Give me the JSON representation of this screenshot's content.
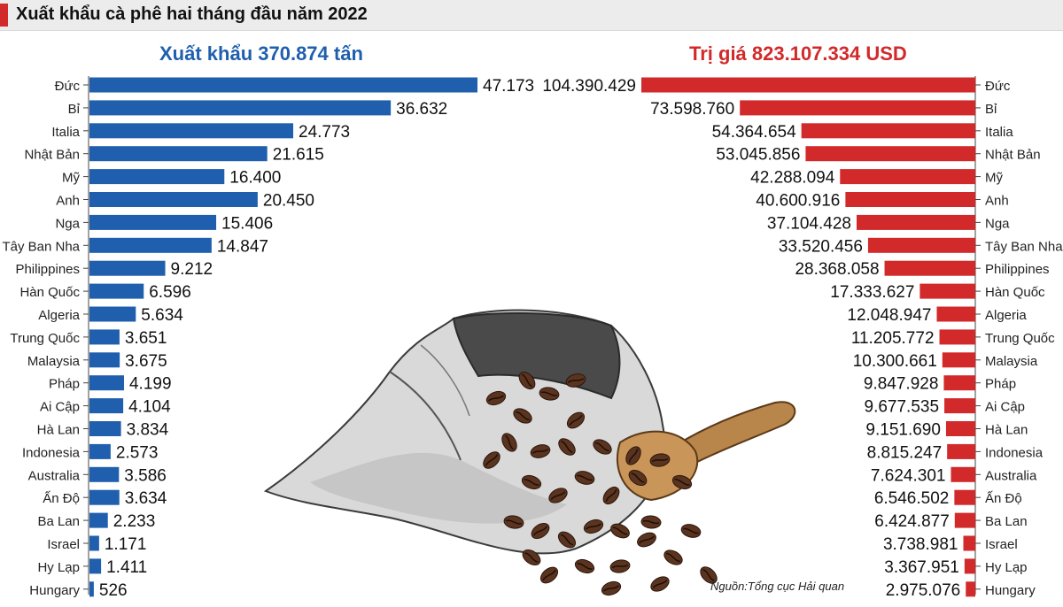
{
  "header": {
    "title": "Xuất khẩu cà phê hai tháng đầu năm 2022"
  },
  "colors": {
    "volume": "#1f5fad",
    "value": "#d22a2a",
    "accent": "#d22a2a"
  },
  "source": "Nguồn:Tổng cục Hải quan",
  "decoration": {
    "icon": "coffee-sack-illustration"
  },
  "chart_data": [
    {
      "type": "bar",
      "orientation": "horizontal",
      "title": "Xuất khẩu 370.874 tấn",
      "unit": "tấn",
      "categories": [
        "Đức",
        "Bỉ",
        "Italia",
        "Nhật Bản",
        "Mỹ",
        "Anh",
        "Nga",
        "Tây Ban Nha",
        "Philippines",
        "Hàn Quốc",
        "Algeria",
        "Trung Quốc",
        "Malaysia",
        "Pháp",
        "Ai Cập",
        "Hà Lan",
        "Indonesia",
        "Australia",
        "Ấn Độ",
        "Ba Lan",
        "Israel",
        "Hy Lạp",
        "Hungary"
      ],
      "values": [
        47173,
        36632,
        24773,
        21615,
        16400,
        20450,
        15406,
        14847,
        9212,
        6596,
        5634,
        3651,
        3675,
        4199,
        4104,
        3834,
        2573,
        3586,
        3634,
        2233,
        1171,
        1411,
        526
      ],
      "labels": [
        "47.173",
        "36.632",
        "24.773",
        "21.615",
        "16.400",
        "20.450",
        "15.406",
        "14.847",
        "9.212",
        "6.596",
        "5.634",
        "3.651",
        "3.675",
        "4.199",
        "4.104",
        "3.834",
        "2.573",
        "3.586",
        "3.634",
        "2.233",
        "1.171",
        "1.411",
        "526"
      ],
      "axis_min": 0,
      "axis_max": 47173
    },
    {
      "type": "bar",
      "orientation": "horizontal",
      "title": "Trị giá 823.107.334 USD",
      "unit": "USD",
      "categories": [
        "Đức",
        "Bỉ",
        "Italia",
        "Nhật Bản",
        "Mỹ",
        "Anh",
        "Nga",
        "Tây Ban Nha",
        "Philippines",
        "Hàn Quốc",
        "Algeria",
        "Trung Quốc",
        "Malaysia",
        "Pháp",
        "Ai Cập",
        "Hà Lan",
        "Indonesia",
        "Australia",
        "Ấn Độ",
        "Ba Lan",
        "Israel",
        "Hy Lạp",
        "Hungary"
      ],
      "values": [
        104390429,
        73598760,
        54364654,
        53045856,
        42288094,
        40600916,
        37104428,
        33520456,
        28368058,
        17333627,
        12048947,
        11205772,
        10300661,
        9847928,
        9677535,
        9151690,
        8815247,
        7624301,
        6546502,
        6424877,
        3738981,
        3367951,
        2975076
      ],
      "labels": [
        "104.390.429",
        "73.598.760",
        "54.364.654",
        "53.045.856",
        "42.288.094",
        "40.600.916",
        "37.104.428",
        "33.520.456",
        "28.368.058",
        "17.333.627",
        "12.048.947",
        "11.205.772",
        "10.300.661",
        "9.847.928",
        "9.677.535",
        "9.151.690",
        "8.815.247",
        "7.624.301",
        "6.546.502",
        "6.424.877",
        "3.738.981",
        "3.367.951",
        "2.975.076"
      ],
      "axis_min": 0,
      "axis_max": 104390429
    }
  ]
}
